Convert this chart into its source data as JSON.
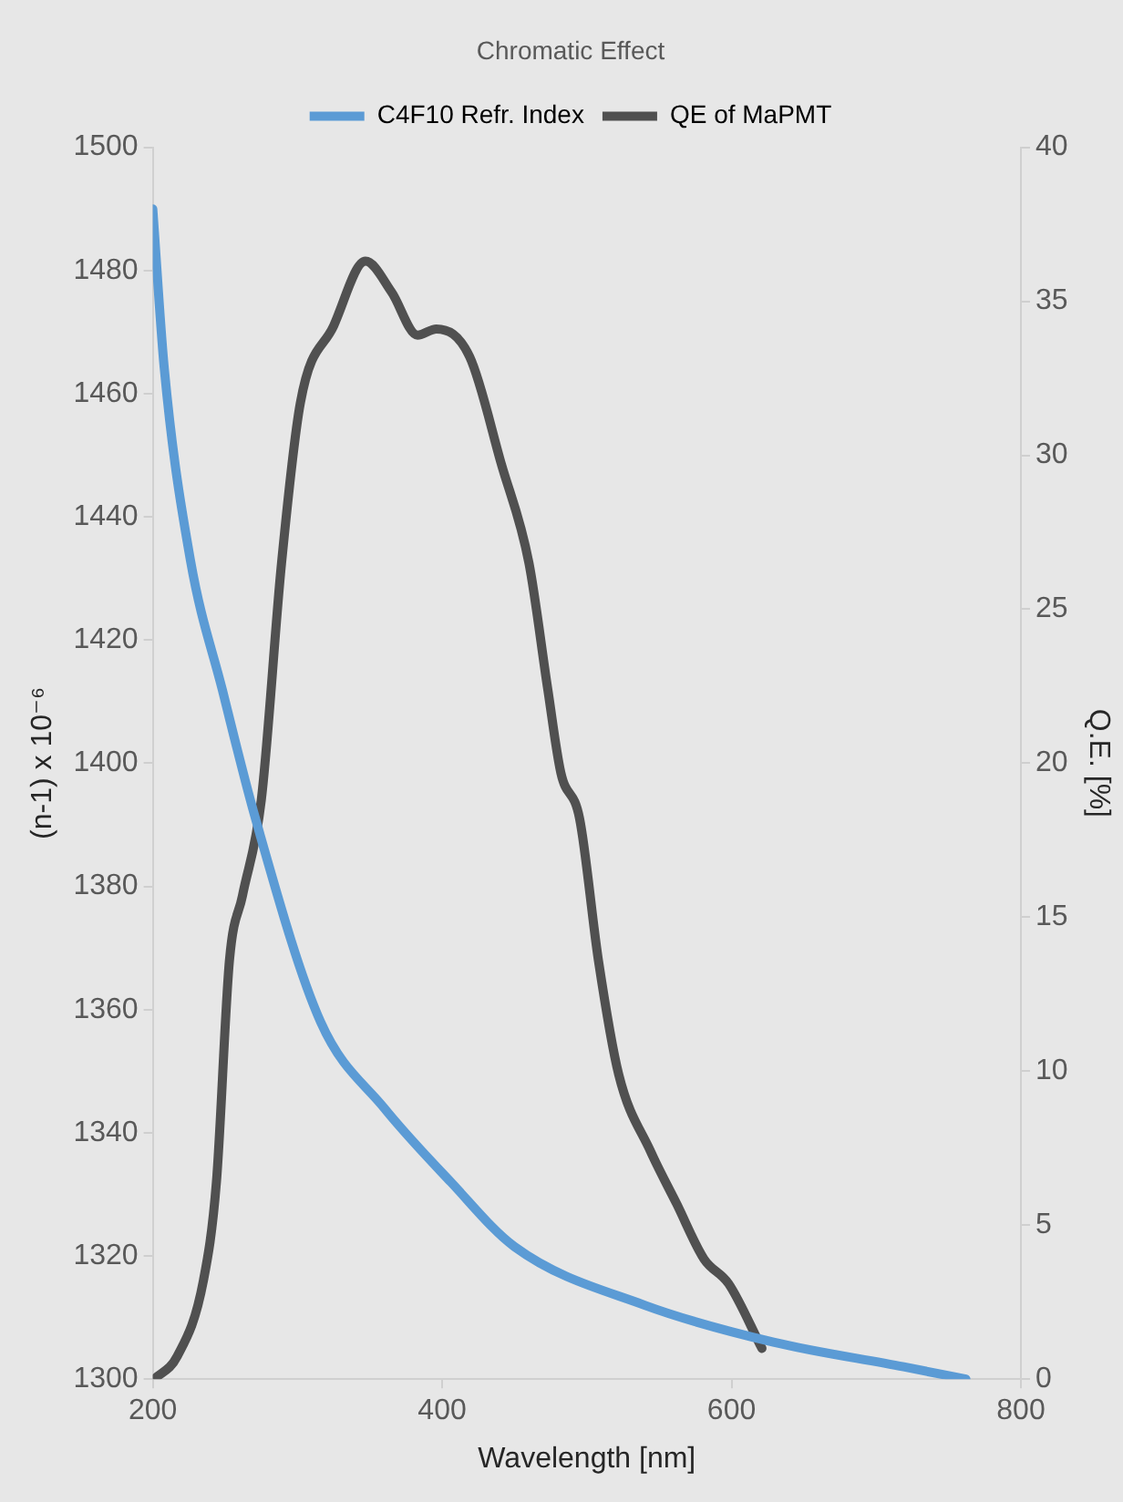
{
  "chart_data": {
    "type": "line",
    "title": "Chromatic Effect",
    "xlabel": "Wavelength [nm]",
    "ylabel": "(n-1) x 10⁻⁶",
    "y2label": "Q.E. [%]",
    "xlim": [
      200,
      800
    ],
    "xticks": [
      200,
      400,
      600,
      800
    ],
    "ylim": [
      1300,
      1500
    ],
    "yticks": [
      1300,
      1320,
      1340,
      1360,
      1380,
      1400,
      1420,
      1440,
      1460,
      1480,
      1500
    ],
    "y2lim": [
      0,
      40
    ],
    "y2ticks": [
      0,
      5,
      10,
      15,
      20,
      25,
      30,
      35,
      40
    ],
    "grid": false,
    "legend": "top",
    "marker": "none",
    "line_style": "solid",
    "series": [
      {
        "name": "C4F10 Refr. Index",
        "color": "#5b9bd5",
        "x": [
          200,
          208,
          226,
          248,
          271,
          316,
          360,
          406,
          450,
          540,
          629,
          719,
          762
        ],
        "values": [
          1490,
          1464,
          1433,
          1412,
          1391,
          1358,
          1344,
          1332,
          1321.5,
          1312,
          1306,
          1302,
          1300
        ]
      },
      {
        "name": "QE of MaPMT",
        "color": "#505050",
        "axis": "y2",
        "x": [
          201,
          217,
          235,
          244,
          253,
          262,
          275,
          289,
          302,
          325,
          347,
          365,
          383,
          396,
          419,
          441,
          460,
          473,
          482,
          495,
          508,
          522,
          544,
          562,
          581,
          598,
          621
        ],
        "values": [
          0,
          0.75,
          3.2,
          6.4,
          13.6,
          15.7,
          18.8,
          26.5,
          31.7,
          34.2,
          36.3,
          35.3,
          33.9,
          34.1,
          33.2,
          29.7,
          26.5,
          22.4,
          19.7,
          18.2,
          13.6,
          9.9,
          7.4,
          5.7,
          3.9,
          3.1,
          1.0
        ]
      }
    ]
  }
}
